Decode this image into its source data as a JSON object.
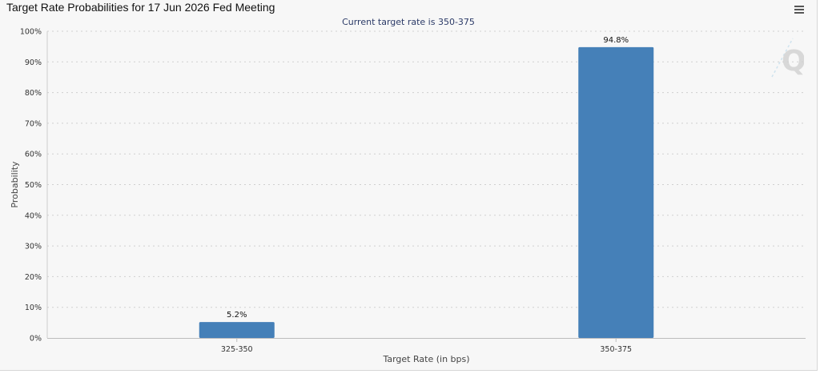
{
  "title": "Target Rate Probabilities for 17 Jun 2026 Fed Meeting",
  "subtitle": "Current target rate is 350-375",
  "menu_icon": "hamburger-menu-icon",
  "watermark": "Q",
  "colors": {
    "bar": "#4580b8",
    "background": "#f7f7f7",
    "grid": "#d0d0d0",
    "subtitle": "#2b3a67"
  },
  "chart_data": {
    "type": "bar",
    "categories": [
      "325-350",
      "350-375"
    ],
    "values": [
      5.2,
      94.8
    ],
    "data_labels": [
      "5.2%",
      "94.8%"
    ],
    "title": "Target Rate Probabilities for 17 Jun 2026 Fed Meeting",
    "subtitle": "Current target rate is 350-375",
    "xlabel": "Target Rate (in bps)",
    "ylabel": "Probability",
    "ylim": [
      0,
      100
    ],
    "yticks": [
      "0%",
      "10%",
      "20%",
      "30%",
      "40%",
      "50%",
      "60%",
      "70%",
      "80%",
      "90%",
      "100%"
    ],
    "grid": true,
    "legend": "none"
  }
}
